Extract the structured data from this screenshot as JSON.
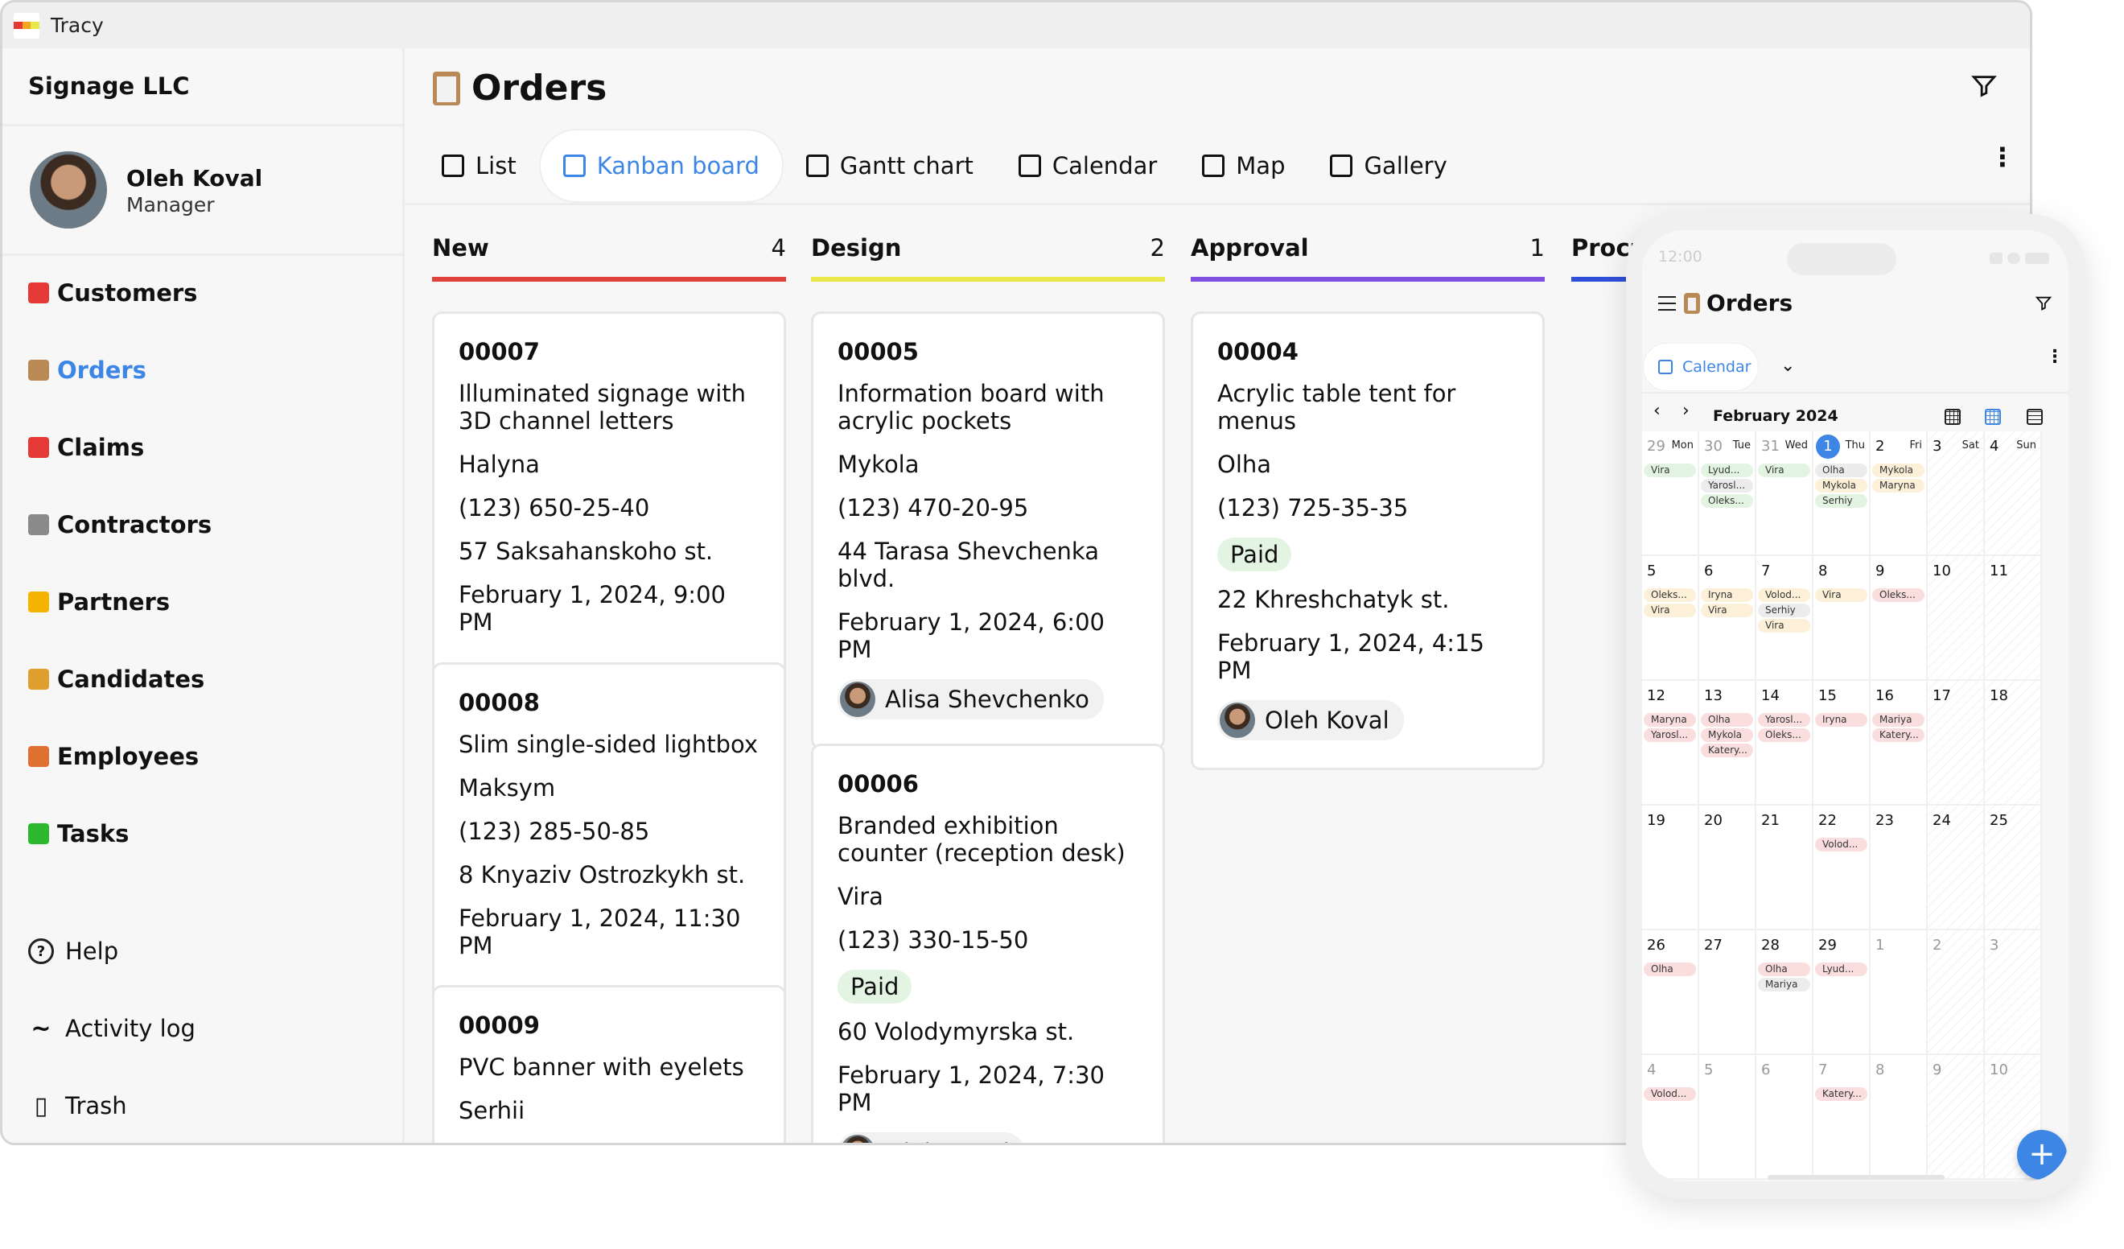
{
  "app": {
    "title": "Tracy"
  },
  "sidebar": {
    "company": "Signage LLC",
    "user": {
      "name": "Oleh Koval",
      "role": "Manager"
    },
    "items": [
      {
        "label": "Customers",
        "icon": "heart-icon",
        "color": "#e53935"
      },
      {
        "label": "Orders",
        "icon": "clipboard-icon",
        "color": "#b98a55",
        "active": true
      },
      {
        "label": "Claims",
        "icon": "siren-icon",
        "color": "#e53935"
      },
      {
        "label": "Contractors",
        "icon": "tools-icon",
        "color": "#8a8a8a"
      },
      {
        "label": "Partners",
        "icon": "handshake-icon",
        "color": "#f4b400"
      },
      {
        "label": "Candidates",
        "icon": "worker-icon",
        "color": "#e0a030"
      },
      {
        "label": "Employees",
        "icon": "factory-worker-icon",
        "color": "#e07030"
      },
      {
        "label": "Tasks",
        "icon": "check-icon",
        "color": "#2eb82e"
      }
    ],
    "bottom": [
      {
        "label": "Help",
        "icon": "help-icon"
      },
      {
        "label": "Activity log",
        "icon": "activity-icon"
      },
      {
        "label": "Trash",
        "icon": "trash-icon"
      }
    ]
  },
  "main": {
    "title": "Orders",
    "tabs": [
      {
        "label": "List",
        "icon": "list-icon"
      },
      {
        "label": "Kanban board",
        "icon": "kanban-icon",
        "active": true
      },
      {
        "label": "Gantt chart",
        "icon": "gantt-icon"
      },
      {
        "label": "Calendar",
        "icon": "calendar-icon"
      },
      {
        "label": "Map",
        "icon": "map-icon"
      },
      {
        "label": "Gallery",
        "icon": "gallery-icon"
      }
    ],
    "accent": "#3d86e6",
    "columns": [
      {
        "name": "New",
        "count": "4",
        "color": "#e0413a",
        "cards": [
          {
            "id": "00007",
            "title": "Illuminated signage with 3D channel letters",
            "customer": "Halyna",
            "phone": "(123) 650-25-40",
            "address": "57 Saksahanskoho st.",
            "date": "February 1, 2024, 9:00 PM"
          },
          {
            "id": "00008",
            "title": "Slim single-sided lightbox",
            "customer": "Maksym",
            "phone": "(123) 285-50-85",
            "address": "8 Knyaziv Ostrozkykh st.",
            "date": "February 1, 2024, 11:30 PM"
          },
          {
            "id": "00009",
            "title": "PVC banner with eyelets",
            "customer": "Serhii"
          }
        ]
      },
      {
        "name": "Design",
        "count": "2",
        "color": "#e8e84a",
        "cards": [
          {
            "id": "00005",
            "title": "Information board with acrylic pockets",
            "customer": "Mykola",
            "phone": "(123) 470-20-95",
            "address": "44 Tarasa Shevchenka blvd.",
            "date": "February 1, 2024, 6:00 PM",
            "assignee": "Alisa Shevchenko"
          },
          {
            "id": "00006",
            "title": "Branded exhibition counter (reception desk)",
            "customer": "Vira",
            "phone": "(123) 330-15-50",
            "status": "Paid",
            "address": "60 Volodymyrska st.",
            "date": "February 1, 2024, 7:30 PM",
            "assignee": "Oleh Koval"
          }
        ]
      },
      {
        "name": "Approval",
        "count": "1",
        "color": "#7e4fe0",
        "cards": [
          {
            "id": "00004",
            "title": "Acrylic table tent for menus",
            "customer": "Olha",
            "phone": "(123) 725-35-35",
            "status": "Paid",
            "address": "22 Khreshchatyk st.",
            "date": "February 1, 2024, 4:15 PM",
            "assignee": "Oleh Koval"
          }
        ]
      },
      {
        "name": "Procu",
        "count": "",
        "color": "#2f4fd8",
        "cards": []
      }
    ]
  },
  "mobile": {
    "time": "12:00",
    "title": "Orders",
    "view": "Calendar",
    "month": "February 2024",
    "chip_colors": {
      "green": "#e3f4e3",
      "gray": "#ececec",
      "yellow": "#fdf0d8",
      "pink": "#fadede"
    },
    "weeks": [
      [
        {
          "d": "29",
          "n": "Mon",
          "m": 1,
          "c": [
            [
              "Vira",
              "green"
            ]
          ]
        },
        {
          "d": "30",
          "n": "Tue",
          "m": 1,
          "c": [
            [
              "Lyud...",
              "green"
            ],
            [
              "Yarosl...",
              "gray"
            ],
            [
              "Oleks...",
              "green"
            ]
          ]
        },
        {
          "d": "31",
          "n": "Wed",
          "m": 1,
          "c": [
            [
              "Vira",
              "green"
            ]
          ]
        },
        {
          "d": "1",
          "n": "Thu",
          "t": 1,
          "c": [
            [
              "Olha",
              "gray"
            ],
            [
              "Mykola",
              "yellow"
            ],
            [
              "Serhiy",
              "green"
            ]
          ]
        },
        {
          "d": "2",
          "n": "Fri",
          "c": [
            [
              "Mykola",
              "yellow"
            ],
            [
              "Maryna",
              "yellow"
            ]
          ]
        },
        {
          "d": "3",
          "n": "Sat",
          "c": []
        },
        {
          "d": "4",
          "n": "Sun",
          "c": []
        }
      ],
      [
        {
          "d": "5",
          "c": [
            [
              "Oleks...",
              "yellow"
            ],
            [
              "Vira",
              "yellow"
            ]
          ]
        },
        {
          "d": "6",
          "c": [
            [
              "Iryna",
              "yellow"
            ],
            [
              "Vira",
              "yellow"
            ]
          ]
        },
        {
          "d": "7",
          "c": [
            [
              "Volod...",
              "yellow"
            ],
            [
              "Serhiy",
              "gray"
            ],
            [
              "Vira",
              "yellow"
            ]
          ]
        },
        {
          "d": "8",
          "c": [
            [
              "Vira",
              "yellow"
            ]
          ]
        },
        {
          "d": "9",
          "c": [
            [
              "Oleks...",
              "pink"
            ]
          ]
        },
        {
          "d": "10",
          "c": []
        },
        {
          "d": "11",
          "c": []
        }
      ],
      [
        {
          "d": "12",
          "c": [
            [
              "Maryna",
              "pink"
            ],
            [
              "Yarosl...",
              "pink"
            ]
          ]
        },
        {
          "d": "13",
          "c": [
            [
              "Olha",
              "pink"
            ],
            [
              "Mykola",
              "pink"
            ],
            [
              "Katery...",
              "pink"
            ]
          ]
        },
        {
          "d": "14",
          "c": [
            [
              "Yarosl...",
              "pink"
            ],
            [
              "Oleks...",
              "pink"
            ]
          ]
        },
        {
          "d": "15",
          "c": [
            [
              "Iryna",
              "pink"
            ]
          ]
        },
        {
          "d": "16",
          "c": [
            [
              "Mariya",
              "pink"
            ],
            [
              "Katery...",
              "pink"
            ]
          ]
        },
        {
          "d": "17",
          "c": []
        },
        {
          "d": "18",
          "c": []
        }
      ],
      [
        {
          "d": "19",
          "c": []
        },
        {
          "d": "20",
          "c": []
        },
        {
          "d": "21",
          "c": []
        },
        {
          "d": "22",
          "c": [
            [
              "Volod...",
              "pink"
            ]
          ]
        },
        {
          "d": "23",
          "c": []
        },
        {
          "d": "24",
          "c": []
        },
        {
          "d": "25",
          "c": []
        }
      ],
      [
        {
          "d": "26",
          "c": [
            [
              "Olha",
              "pink"
            ]
          ]
        },
        {
          "d": "27",
          "c": []
        },
        {
          "d": "28",
          "c": [
            [
              "Olha",
              "pink"
            ],
            [
              "Mariya",
              "gray"
            ]
          ]
        },
        {
          "d": "29",
          "c": [
            [
              "Lyud...",
              "pink"
            ]
          ]
        },
        {
          "d": "1",
          "m": 1,
          "c": []
        },
        {
          "d": "2",
          "m": 1,
          "c": []
        },
        {
          "d": "3",
          "m": 1,
          "c": []
        }
      ],
      [
        {
          "d": "4",
          "m": 1,
          "c": [
            [
              "Volod...",
              "pink"
            ]
          ]
        },
        {
          "d": "5",
          "m": 1,
          "c": []
        },
        {
          "d": "6",
          "m": 1,
          "c": []
        },
        {
          "d": "7",
          "m": 1,
          "c": [
            [
              "Katery...",
              "pink"
            ]
          ]
        },
        {
          "d": "8",
          "m": 1,
          "c": []
        },
        {
          "d": "9",
          "m": 1,
          "c": []
        },
        {
          "d": "10",
          "m": 1,
          "c": []
        }
      ]
    ],
    "fab": "+"
  }
}
